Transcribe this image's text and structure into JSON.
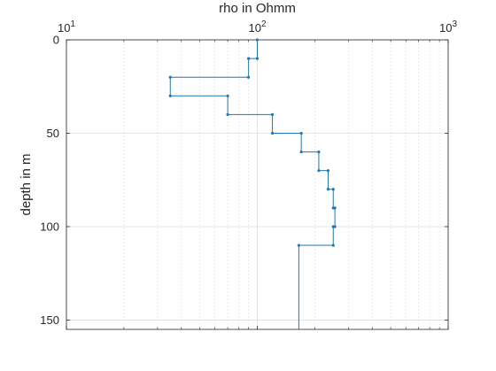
{
  "chart_data": {
    "type": "line",
    "xlabel": "rho in Ohmm",
    "ylabel": "depth in m",
    "x_scale": "log",
    "xlim": [
      10,
      1000
    ],
    "ylim": [
      155,
      0
    ],
    "x_axis_position": "top",
    "y_direction": "reversed",
    "grid": true,
    "x_ticks": [
      {
        "value": 10,
        "base": "10",
        "exp": "1"
      },
      {
        "value": 100,
        "base": "10",
        "exp": "2"
      },
      {
        "value": 1000,
        "base": "10",
        "exp": "3"
      }
    ],
    "y_ticks": [
      0,
      50,
      100,
      150
    ],
    "line_color": "#1f77b4",
    "series": [
      {
        "style": "step",
        "points": [
          {
            "x": 100,
            "y": 0
          },
          {
            "x": 100,
            "y": 10
          },
          {
            "x": 90,
            "y": 10
          },
          {
            "x": 90,
            "y": 20
          },
          {
            "x": 35,
            "y": 20
          },
          {
            "x": 35,
            "y": 30
          },
          {
            "x": 70,
            "y": 30
          },
          {
            "x": 70,
            "y": 40
          },
          {
            "x": 120,
            "y": 40
          },
          {
            "x": 120,
            "y": 50
          },
          {
            "x": 170,
            "y": 50
          },
          {
            "x": 170,
            "y": 60
          },
          {
            "x": 210,
            "y": 60
          },
          {
            "x": 210,
            "y": 70
          },
          {
            "x": 235,
            "y": 70
          },
          {
            "x": 235,
            "y": 80
          },
          {
            "x": 250,
            "y": 80
          },
          {
            "x": 250,
            "y": 90
          },
          {
            "x": 255,
            "y": 90
          },
          {
            "x": 255,
            "y": 100
          },
          {
            "x": 250,
            "y": 100
          },
          {
            "x": 250,
            "y": 110
          },
          {
            "x": 165,
            "y": 110
          },
          {
            "x": 165,
            "y": 155
          }
        ]
      }
    ]
  }
}
